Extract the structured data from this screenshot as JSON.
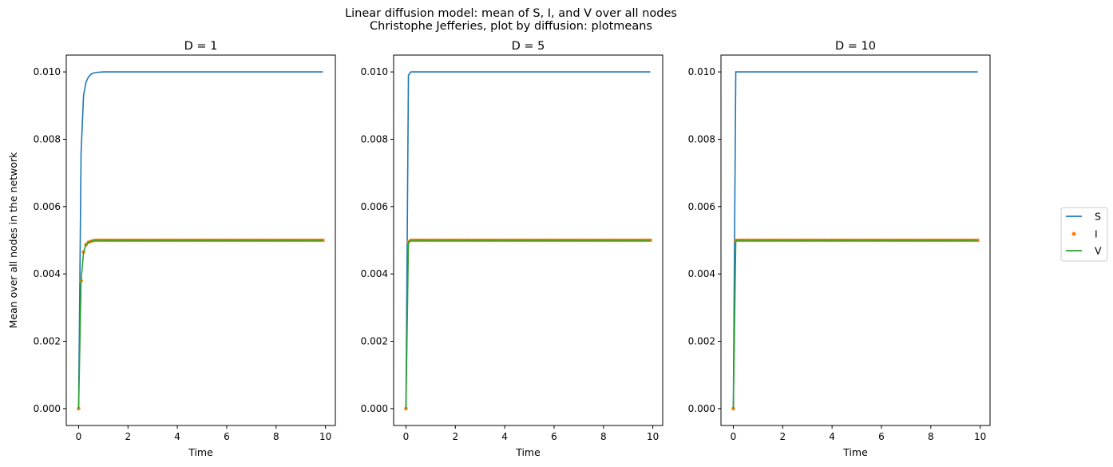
{
  "suptitle": {
    "line1": "Linear diffusion model: mean of S, I, and V over all nodes",
    "line2": "Christophe Jefferies, plot by diffusion: plotmeans"
  },
  "colors": {
    "S": "#1f77b4",
    "I": "#ff7f0e",
    "V": "#2ca02c"
  },
  "legend": {
    "position": "right",
    "entries": [
      "S",
      "I",
      "V"
    ]
  },
  "chart_data": [
    {
      "type": "line",
      "title": "D = 1",
      "xlabel": "Time",
      "ylabel": "Mean over all nodes in the network",
      "xlim": [
        -0.5,
        10.4
      ],
      "ylim": [
        -0.0005,
        0.0105
      ],
      "xticks": [
        0,
        2,
        4,
        6,
        8,
        10
      ],
      "yticks": [
        0.0,
        0.002,
        0.004,
        0.006,
        0.008,
        0.01
      ],
      "ytick_labels": [
        "0.000",
        "0.002",
        "0.004",
        "0.006",
        "0.008",
        "0.010"
      ],
      "grid": false,
      "dt": 0.1,
      "t_end": 9.9,
      "series": [
        {
          "name": "S",
          "style": "line",
          "early": [
            [
              0.0,
              0.0
            ],
            [
              0.1,
              0.0076
            ],
            [
              0.2,
              0.0093
            ],
            [
              0.3,
              0.0097
            ],
            [
              0.4,
              0.00985
            ],
            [
              0.5,
              0.00993
            ],
            [
              0.6,
              0.00997
            ],
            [
              0.8,
              0.00999
            ],
            [
              1.0,
              0.01
            ]
          ],
          "steady": 0.01
        },
        {
          "name": "I",
          "style": "points",
          "early": [
            [
              0.0,
              0.0
            ],
            [
              0.1,
              0.0038
            ],
            [
              0.2,
              0.00465
            ],
            [
              0.3,
              0.00487
            ],
            [
              0.4,
              0.00494
            ],
            [
              0.5,
              0.00497
            ],
            [
              0.6,
              0.00499
            ]
          ],
          "steady": 0.005
        },
        {
          "name": "V",
          "style": "line",
          "early": [
            [
              0.0,
              0.0
            ],
            [
              0.1,
              0.0038
            ],
            [
              0.2,
              0.00465
            ],
            [
              0.3,
              0.00487
            ],
            [
              0.4,
              0.00494
            ],
            [
              0.5,
              0.00497
            ],
            [
              0.6,
              0.00499
            ]
          ],
          "steady": 0.005
        }
      ]
    },
    {
      "type": "line",
      "title": "D = 5",
      "xlabel": "Time",
      "ylabel": "",
      "xlim": [
        -0.5,
        10.4
      ],
      "ylim": [
        -0.0005,
        0.0105
      ],
      "xticks": [
        0,
        2,
        4,
        6,
        8,
        10
      ],
      "yticks": [
        0.0,
        0.002,
        0.004,
        0.006,
        0.008,
        0.01
      ],
      "ytick_labels": [
        "0.000",
        "0.002",
        "0.004",
        "0.006",
        "0.008",
        "0.010"
      ],
      "grid": false,
      "dt": 0.1,
      "t_end": 9.9,
      "series": [
        {
          "name": "S",
          "style": "line",
          "early": [
            [
              0.0,
              0.0
            ],
            [
              0.1,
              0.0099
            ],
            [
              0.2,
              0.01
            ]
          ],
          "steady": 0.01
        },
        {
          "name": "I",
          "style": "points",
          "early": [
            [
              0.0,
              0.0
            ],
            [
              0.1,
              0.00495
            ],
            [
              0.2,
              0.005
            ]
          ],
          "steady": 0.005
        },
        {
          "name": "V",
          "style": "line",
          "early": [
            [
              0.0,
              0.0
            ],
            [
              0.1,
              0.00495
            ],
            [
              0.2,
              0.005
            ]
          ],
          "steady": 0.005
        }
      ]
    },
    {
      "type": "line",
      "title": "D = 10",
      "xlabel": "Time",
      "ylabel": "",
      "xlim": [
        -0.5,
        10.4
      ],
      "ylim": [
        -0.0005,
        0.0105
      ],
      "xticks": [
        0,
        2,
        4,
        6,
        8,
        10
      ],
      "yticks": [
        0.0,
        0.002,
        0.004,
        0.006,
        0.008,
        0.01
      ],
      "ytick_labels": [
        "0.000",
        "0.002",
        "0.004",
        "0.006",
        "0.008",
        "0.010"
      ],
      "grid": false,
      "dt": 0.1,
      "t_end": 9.9,
      "series": [
        {
          "name": "S",
          "style": "line",
          "early": [
            [
              0.0,
              0.0
            ],
            [
              0.1,
              0.01
            ]
          ],
          "steady": 0.01
        },
        {
          "name": "I",
          "style": "points",
          "early": [
            [
              0.0,
              0.0
            ],
            [
              0.1,
              0.005
            ]
          ],
          "steady": 0.005
        },
        {
          "name": "V",
          "style": "line",
          "early": [
            [
              0.0,
              0.0
            ],
            [
              0.1,
              0.005
            ]
          ],
          "steady": 0.005
        }
      ]
    }
  ]
}
